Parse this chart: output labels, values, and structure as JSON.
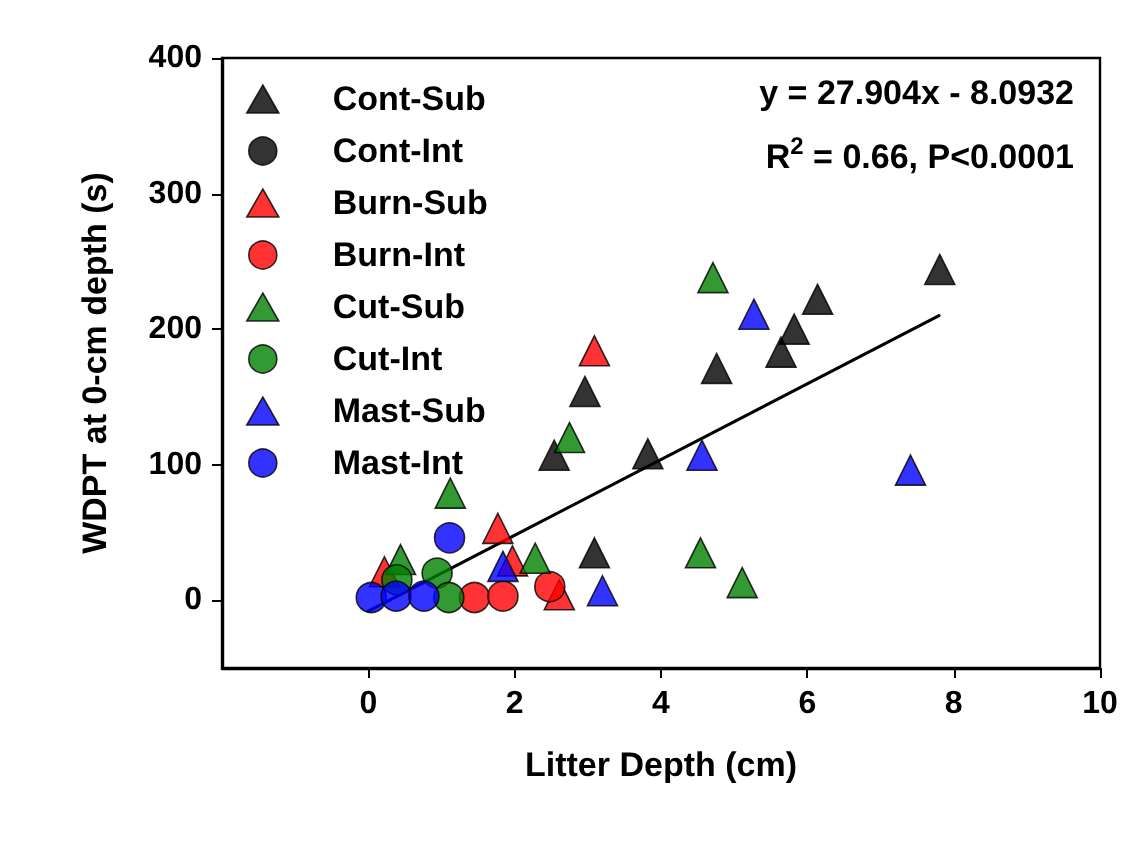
{
  "chart_data": {
    "type": "scatter",
    "xlabel": "Litter Depth (cm)",
    "ylabel": "WDPT at 0-cm depth (s)",
    "annotations": [
      "y = 27.904x - 8.0932",
      "R$^{2}$ = 0.66, P<0.0001"
    ],
    "xlim": [
      -2,
      10
    ],
    "xticks": [
      0,
      2,
      4,
      6,
      8,
      10
    ],
    "ylim": [
      -50,
      400
    ],
    "yticks": [
      0,
      100,
      200,
      300,
      400
    ],
    "grid": false,
    "legend": "top left",
    "series": [
      {
        "name": "Cont-Sub",
        "color": "#000000",
        "marker": "triangle",
        "x": [
          7.81,
          6.14,
          5.82,
          5.64,
          4.76,
          2.96,
          2.54,
          3.82,
          3.09
        ],
        "values": [
          244,
          222,
          200,
          183,
          171,
          154,
          107,
          108,
          35
        ]
      },
      {
        "name": "Cont-Int",
        "color": "#000000",
        "marker": "circle"
      },
      {
        "name": "Burn-Sub",
        "color": "#ff0000",
        "marker": "triangle",
        "x": [
          3.09,
          1.77,
          1.97,
          0.22,
          2.61
        ],
        "values": [
          184,
          53,
          29,
          21,
          4
        ]
      },
      {
        "name": "Burn-Int",
        "color": "#ff0000",
        "marker": "circle",
        "x": [
          1.45,
          1.84,
          2.48
        ],
        "values": [
          2,
          3,
          10
        ]
      },
      {
        "name": "Cut-Sub",
        "color": "#008000",
        "marker": "triangle",
        "x": [
          4.71,
          2.75,
          1.12,
          2.28,
          0.44,
          4.54,
          5.11
        ],
        "values": [
          238,
          120,
          79,
          31,
          30,
          35,
          13
        ]
      },
      {
        "name": "Cut-Int",
        "color": "#008000",
        "marker": "circle",
        "x": [
          0.94,
          0.39,
          1.1
        ],
        "values": [
          20,
          15,
          2
        ]
      },
      {
        "name": "Mast-Sub",
        "color": "#0000ff",
        "marker": "triangle",
        "x": [
          5.27,
          4.56,
          7.41,
          1.84,
          3.2
        ],
        "values": [
          211,
          107,
          96,
          25,
          7
        ]
      },
      {
        "name": "Mast-Int",
        "color": "#0000ff",
        "marker": "circle",
        "x": [
          1.11,
          0.04,
          0.38,
          0.76
        ],
        "values": [
          46,
          2,
          3,
          3
        ]
      },
      {
        "type": "line",
        "color": "#000000",
        "marker": "none",
        "line_style": "solid",
        "x": [
          0,
          7.8
        ],
        "values": [
          -8,
          210
        ]
      }
    ]
  }
}
